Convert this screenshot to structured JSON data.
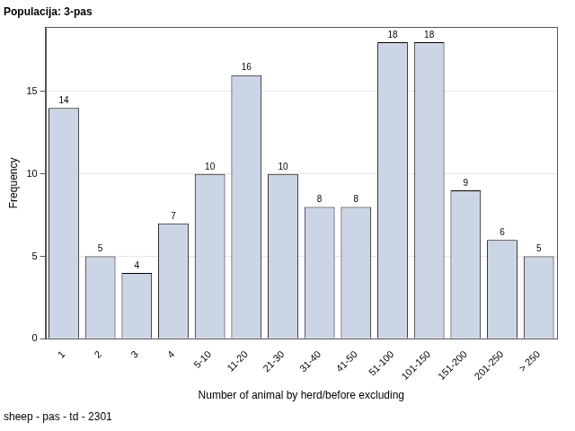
{
  "chart_data": {
    "type": "bar",
    "title": "Populacija: 3-pas",
    "footnote": "sheep - pas - td - 2301",
    "xlabel": "Number of animal by herd/before excluding",
    "ylabel": "Frequency",
    "categories": [
      "1",
      "2",
      "3",
      "4",
      "5-10",
      "11-20",
      "21-30",
      "31-40",
      "41-50",
      "51-100",
      "101-150",
      "151-200",
      "201-250",
      "> 250"
    ],
    "values": [
      14,
      5,
      4,
      7,
      10,
      16,
      10,
      8,
      8,
      18,
      18,
      9,
      6,
      5
    ],
    "color": "#cbd5e6",
    "ylim": [
      0,
      18.9
    ],
    "yticks": [
      0,
      5,
      10,
      15
    ],
    "grid": true,
    "data_labels": true
  }
}
